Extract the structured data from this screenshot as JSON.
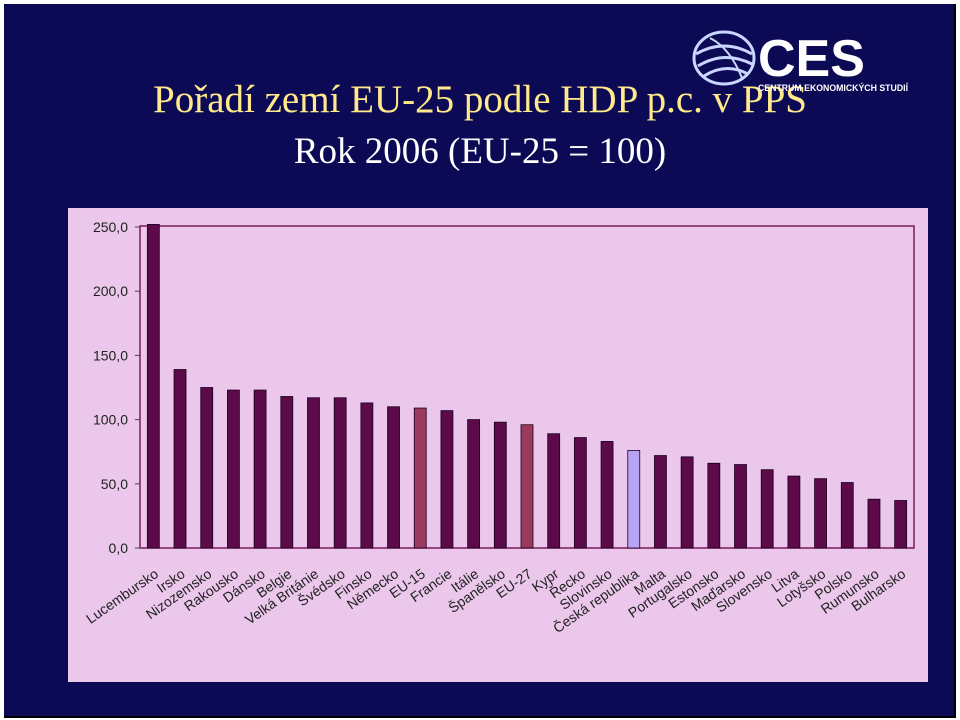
{
  "header": {
    "title": "Pořadí zemí EU-25 podle HDP p.c. v PPS",
    "subtitle": "Rok 2006 (EU-25 = 100)",
    "logo_text": "CES",
    "logo_subtext": "CENTRUM EKONOMICKÝCH STUDIÍ"
  },
  "colors": {
    "background": "#0d0a55",
    "title": "#ffe98a",
    "plot_bg": "#ebc7eb",
    "bar_default": "#5c0a4a",
    "bar_eu": "#9b3a5c",
    "bar_czech": "#b7a3f2"
  },
  "chart_data": {
    "type": "bar",
    "title": "",
    "xlabel": "",
    "ylabel": "",
    "ylim": [
      0,
      250
    ],
    "yticks": [
      "0,0",
      "50,0",
      "100,0",
      "150,0",
      "200,0",
      "250,0"
    ],
    "ytick_values": [
      0,
      50,
      100,
      150,
      200,
      250
    ],
    "grid": false,
    "categories": [
      "Lucembursko",
      "Irsko",
      "Nizozemsko",
      "Rakousko",
      "Dánsko",
      "Belgie",
      "Velká Británie",
      "Švédsko",
      "Finsko",
      "Německo",
      "EU-15",
      "Francie",
      "Itálie",
      "Španělsko",
      "EU-27",
      "Kypr",
      "Řecko",
      "Slovinsko",
      "Česká republika",
      "Malta",
      "Portugalsko",
      "Estonsko",
      "Maďarsko",
      "Slovensko",
      "Litva",
      "Lotyšsko",
      "Polsko",
      "Rumunsko",
      "Bulharsko"
    ],
    "values": [
      252,
      139,
      125,
      123,
      123,
      118,
      117,
      117,
      113,
      110,
      109,
      107,
      100,
      98,
      96,
      89,
      86,
      83,
      76,
      72,
      71,
      66,
      65,
      61,
      56,
      54,
      51,
      38,
      37
    ],
    "highlight": {
      "EU-15": "bar_eu",
      "EU-27": "bar_eu",
      "Česká republika": "bar_czech"
    }
  }
}
